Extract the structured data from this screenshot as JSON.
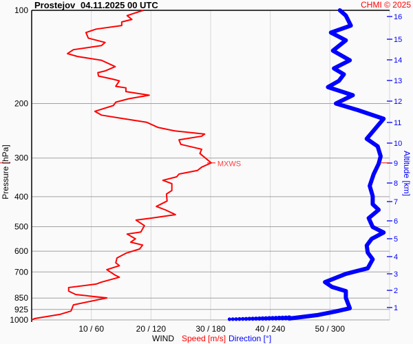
{
  "header": {
    "station": "Prostejov",
    "datetime": "04.11.2025 00 UTC",
    "copyright": "CHMI © 2025"
  },
  "colors": {
    "speed": "#ff0000",
    "direction": "#0000ff",
    "grid_major": "#a0a0a0",
    "grid_minor": "#d8d8d8",
    "background": "#fafafa"
  },
  "chart_data": {
    "type": "line",
    "title": "Prostejov    04.11.2025 00 UTC",
    "ylabel": "Pressure [hPa]",
    "y2label": "Altitude [km]",
    "xlabel": {
      "prefix": "WIND",
      "speed": "Speed [m/s]",
      "direction": "Direction [°]"
    },
    "y_scale": "log",
    "ylim": [
      1000,
      100
    ],
    "xlim_speed": [
      0,
      60
    ],
    "xlim_direction": [
      0,
      360
    ],
    "grid": true,
    "y_ticks": [
      100,
      200,
      300,
      400,
      500,
      600,
      700,
      850,
      925,
      1000
    ],
    "x_ticks": [
      {
        "speed": 10,
        "dir": 60,
        "label": "10 / 60"
      },
      {
        "speed": 20,
        "dir": 120,
        "label": "20 / 120"
      },
      {
        "speed": 30,
        "dir": 180,
        "label": "30 / 180"
      },
      {
        "speed": 40,
        "dir": 240,
        "label": "40 / 240"
      },
      {
        "speed": 50,
        "dir": 300,
        "label": "50 / 300"
      }
    ],
    "altitude_ticks": [
      1,
      2,
      3,
      4,
      5,
      6,
      7,
      8,
      9,
      10,
      11,
      12,
      13,
      14,
      15,
      16
    ],
    "max_wind": {
      "label": "MXWS",
      "pressure": 311,
      "speed": 30.1
    },
    "series": [
      {
        "name": "Speed [m/s]",
        "color": "#ff0000",
        "points": [
          [
            1000,
            0.0
          ],
          [
            990,
            0.5
          ],
          [
            960,
            4.7
          ],
          [
            936,
            6.6
          ],
          [
            894,
            7.0
          ],
          [
            849,
            12.6
          ],
          [
            828,
            7.4
          ],
          [
            807,
            6.2
          ],
          [
            786,
            6.2
          ],
          [
            766,
            10.8
          ],
          [
            755,
            11.7
          ],
          [
            728,
            14.7
          ],
          [
            717,
            14.0
          ],
          [
            688,
            12.6
          ],
          [
            668,
            14.7
          ],
          [
            654,
            14.1
          ],
          [
            631,
            14.3
          ],
          [
            609,
            15.8
          ],
          [
            590,
            18.1
          ],
          [
            573,
            18.6
          ],
          [
            561,
            16.6
          ],
          [
            547,
            17.4
          ],
          [
            528,
            16.0
          ],
          [
            520,
            18.3
          ],
          [
            496,
            18.9
          ],
          [
            476,
            17.5
          ],
          [
            469,
            20.1
          ],
          [
            457,
            24.1
          ],
          [
            441,
            22.4
          ],
          [
            430,
            20.9
          ],
          [
            413,
            22.7
          ],
          [
            392,
            22.6
          ],
          [
            382,
            23.5
          ],
          [
            363,
            23.5
          ],
          [
            354,
            22.0
          ],
          [
            345,
            24.3
          ],
          [
            338,
            24.7
          ],
          [
            329,
            27.8
          ],
          [
            321,
            28.5
          ],
          [
            311,
            30.1
          ],
          [
            290,
            28.2
          ],
          [
            281,
            28.5
          ],
          [
            271,
            25.0
          ],
          [
            262,
            24.7
          ],
          [
            255,
            28.5
          ],
          [
            251,
            29.0
          ],
          [
            245,
            23.9
          ],
          [
            239,
            21.2
          ],
          [
            230,
            19.3
          ],
          [
            224,
            15.5
          ],
          [
            218,
            11.7
          ],
          [
            212,
            10.6
          ],
          [
            203,
            13.7
          ],
          [
            198,
            14.1
          ],
          [
            193,
            16.3
          ],
          [
            188,
            19.7
          ],
          [
            183,
            15.8
          ],
          [
            178,
            15.8
          ],
          [
            176,
            14.1
          ],
          [
            169,
            14.7
          ],
          [
            167,
            13.7
          ],
          [
            163,
            11.2
          ],
          [
            159,
            11.1
          ],
          [
            157,
            12.3
          ],
          [
            152,
            14.0
          ],
          [
            145,
            11.7
          ],
          [
            141,
            7.7
          ],
          [
            138,
            6.0
          ],
          [
            134,
            7.0
          ],
          [
            130,
            11.7
          ],
          [
            127,
            12.3
          ],
          [
            123,
            9.5
          ],
          [
            118,
            9.1
          ],
          [
            115,
            10.8
          ],
          [
            112,
            15.1
          ],
          [
            109,
            15.1
          ],
          [
            107,
            16.8
          ],
          [
            104,
            16.0
          ],
          [
            100,
            18.7
          ]
        ]
      },
      {
        "name": "Direction [°]",
        "color": "#0000ff",
        "points": [
          [
            1000,
            199
          ],
          [
            990,
            259
          ],
          [
            965,
            287
          ],
          [
            940,
            305
          ],
          [
            917,
            320
          ],
          [
            849,
            316
          ],
          [
            807,
            316
          ],
          [
            782,
            302
          ],
          [
            755,
            295
          ],
          [
            710,
            316
          ],
          [
            681,
            338
          ],
          [
            637,
            343
          ],
          [
            606,
            338
          ],
          [
            575,
            337
          ],
          [
            547,
            342
          ],
          [
            522,
            354
          ],
          [
            501,
            343
          ],
          [
            469,
            339
          ],
          [
            441,
            349
          ],
          [
            423,
            343
          ],
          [
            398,
            343
          ],
          [
            369,
            340
          ],
          [
            338,
            344
          ],
          [
            313,
            349
          ],
          [
            296,
            351
          ],
          [
            275,
            348
          ],
          [
            260,
            337
          ],
          [
            236,
            348
          ],
          [
            224,
            354
          ],
          [
            210,
            328
          ],
          [
            200,
            306
          ],
          [
            188,
            323
          ],
          [
            177,
            298
          ],
          [
            169,
            309
          ],
          [
            161,
            314
          ],
          [
            154,
            304
          ],
          [
            145,
            320
          ],
          [
            135,
            303
          ],
          [
            125,
            316
          ],
          [
            118,
            301
          ],
          [
            112,
            321
          ],
          [
            104,
            316
          ],
          [
            100,
            310
          ]
        ]
      }
    ]
  }
}
